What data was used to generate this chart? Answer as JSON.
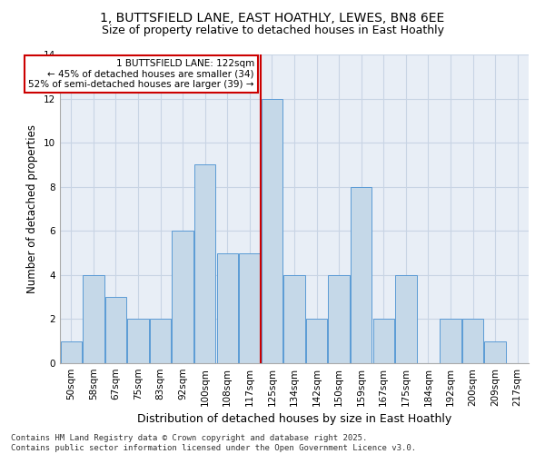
{
  "title": "1, BUTTSFIELD LANE, EAST HOATHLY, LEWES, BN8 6EE",
  "subtitle": "Size of property relative to detached houses in East Hoathly",
  "xlabel": "Distribution of detached houses by size in East Hoathly",
  "ylabel": "Number of detached properties",
  "categories": [
    "50sqm",
    "58sqm",
    "67sqm",
    "75sqm",
    "83sqm",
    "92sqm",
    "100sqm",
    "108sqm",
    "117sqm",
    "125sqm",
    "134sqm",
    "142sqm",
    "150sqm",
    "159sqm",
    "167sqm",
    "175sqm",
    "184sqm",
    "192sqm",
    "200sqm",
    "209sqm",
    "217sqm"
  ],
  "values": [
    1,
    4,
    3,
    2,
    2,
    6,
    9,
    5,
    5,
    12,
    4,
    2,
    4,
    8,
    2,
    4,
    0,
    2,
    2,
    1,
    0
  ],
  "bar_color": "#c5d8e8",
  "bar_edge_color": "#5b9bd5",
  "vline_index": 8.5,
  "vline_color": "#cc0000",
  "annotation_text": "1 BUTTSFIELD LANE: 122sqm\n← 45% of detached houses are smaller (34)\n52% of semi-detached houses are larger (39) →",
  "annotation_box_color": "#ffffff",
  "annotation_box_edge_color": "#cc0000",
  "ylim": [
    0,
    14
  ],
  "yticks": [
    0,
    2,
    4,
    6,
    8,
    10,
    12,
    14
  ],
  "grid_color": "#c8d4e4",
  "background_color": "#e8eef6",
  "footer_text": "Contains HM Land Registry data © Crown copyright and database right 2025.\nContains public sector information licensed under the Open Government Licence v3.0.",
  "title_fontsize": 10,
  "subtitle_fontsize": 9,
  "xlabel_fontsize": 9,
  "ylabel_fontsize": 8.5,
  "tick_fontsize": 7.5,
  "annotation_fontsize": 7.5,
  "footer_fontsize": 6.5
}
